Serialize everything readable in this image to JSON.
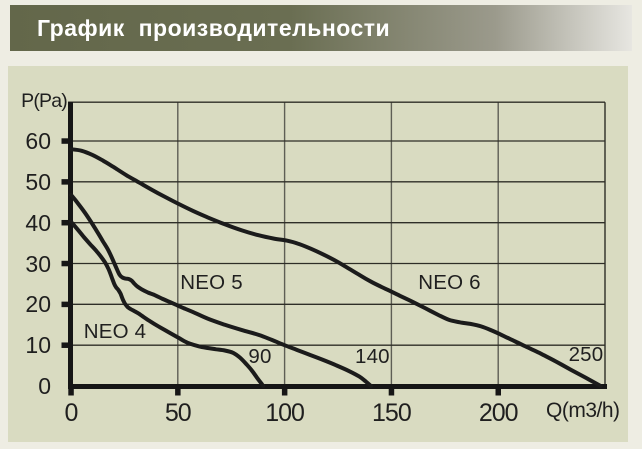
{
  "header": {
    "title": "График производительности"
  },
  "colors": {
    "page_bg": "#eeede3",
    "panel_bg": "#d9dbc1",
    "header_gradient_start": "#63674a",
    "header_gradient_end": "#e7e6e1",
    "title_text": "#ffffff",
    "curve": "#1b1b1b",
    "axis": "#161616",
    "grid_horizontal": "#2e2e27",
    "grid_vertical": "#5e5e55",
    "label_text": "#1f1f1f"
  },
  "chart_data": {
    "type": "line",
    "title": "График производительности",
    "xlabel": "Q(m3/h)",
    "ylabel": "P(Pa)",
    "xlim": [
      0,
      250
    ],
    "ylim": [
      0,
      69.5
    ],
    "xticks": [
      0,
      50,
      100,
      150,
      200
    ],
    "yticks": [
      0,
      10,
      20,
      30,
      40,
      50,
      60
    ],
    "grid": true,
    "series": [
      {
        "name": "NEO 4",
        "name_pos": {
          "q": 20.6,
          "p": 13.3
        },
        "flow_label": "90",
        "flow_label_pos": {
          "q": 88.5,
          "p": 7.2
        },
        "points": [
          [
            0,
            40.2
          ],
          [
            3,
            38.4
          ],
          [
            6,
            36.5
          ],
          [
            9,
            34.7
          ],
          [
            12,
            33
          ],
          [
            14,
            31.7
          ],
          [
            16,
            30.2
          ],
          [
            17.6,
            28.6
          ],
          [
            19.3,
            26.3
          ],
          [
            20.3,
            24.9
          ],
          [
            21.2,
            24.1
          ],
          [
            22.2,
            23.5
          ],
          [
            23.2,
            22.6
          ],
          [
            24,
            21.5
          ],
          [
            24.8,
            20.6
          ],
          [
            25.6,
            19.9
          ],
          [
            26.6,
            19.3
          ],
          [
            28,
            18.8
          ],
          [
            29.5,
            18.4
          ],
          [
            31.5,
            17.8
          ],
          [
            34,
            16.9
          ],
          [
            36,
            16.2
          ],
          [
            40,
            14.9
          ],
          [
            44,
            13.7
          ],
          [
            50,
            11.9
          ],
          [
            53,
            11
          ],
          [
            56,
            10.3
          ],
          [
            60,
            9.7
          ],
          [
            64,
            9.3
          ],
          [
            68,
            9
          ],
          [
            72,
            8.7
          ],
          [
            76,
            8.1
          ],
          [
            79,
            7
          ],
          [
            82,
            5.4
          ],
          [
            84.5,
            3.9
          ],
          [
            87,
            2.1
          ],
          [
            89,
            0.7
          ],
          [
            90,
            0
          ]
        ]
      },
      {
        "name": "NEO 5",
        "name_pos": {
          "q": 65.8,
          "p": 25.3
        },
        "flow_label": "140",
        "flow_label_pos": {
          "q": 141.1,
          "p": 7.2
        },
        "points": [
          [
            0,
            46.8
          ],
          [
            3,
            44.9
          ],
          [
            6,
            42.8
          ],
          [
            9,
            40.5
          ],
          [
            12,
            38
          ],
          [
            15,
            35.4
          ],
          [
            17.5,
            33.2
          ],
          [
            20,
            30.4
          ],
          [
            21.5,
            28.6
          ],
          [
            22.8,
            27.2
          ],
          [
            24,
            26.6
          ],
          [
            25.5,
            26.3
          ],
          [
            27,
            26.2
          ],
          [
            28.4,
            25.8
          ],
          [
            29.6,
            25.1
          ],
          [
            31,
            24.4
          ],
          [
            33,
            23.7
          ],
          [
            36,
            22.9
          ],
          [
            39,
            22.3
          ],
          [
            43,
            21.3
          ],
          [
            47,
            20.4
          ],
          [
            50,
            19.7
          ],
          [
            53,
            19
          ],
          [
            58,
            17.9
          ],
          [
            64,
            16.5
          ],
          [
            72,
            15
          ],
          [
            80,
            13.7
          ],
          [
            88,
            12.5
          ],
          [
            94,
            11.3
          ],
          [
            100,
            10
          ],
          [
            106,
            8.8
          ],
          [
            112,
            7.6
          ],
          [
            118,
            6.4
          ],
          [
            124,
            5.1
          ],
          [
            130,
            3.7
          ],
          [
            135,
            2.3
          ],
          [
            138,
            1.1
          ],
          [
            140.5,
            0
          ]
        ]
      },
      {
        "name": "NEO 6",
        "name_pos": {
          "q": 177.2,
          "p": 25.3
        },
        "flow_label": "250",
        "flow_label_pos": {
          "q": 241.1,
          "p": 7.6
        },
        "points": [
          [
            0,
            58
          ],
          [
            5,
            57.6
          ],
          [
            10,
            56.6
          ],
          [
            15,
            55.2
          ],
          [
            20,
            53.6
          ],
          [
            26,
            51.6
          ],
          [
            32,
            49.8
          ],
          [
            38,
            48
          ],
          [
            44,
            46.3
          ],
          [
            50,
            44.7
          ],
          [
            57,
            42.9
          ],
          [
            64,
            41.3
          ],
          [
            72,
            39.6
          ],
          [
            80,
            38.1
          ],
          [
            88,
            36.9
          ],
          [
            95,
            36.1
          ],
          [
            101,
            35.6
          ],
          [
            106,
            34.9
          ],
          [
            111,
            33.9
          ],
          [
            117,
            32.5
          ],
          [
            123,
            30.9
          ],
          [
            129,
            29.1
          ],
          [
            135,
            27.2
          ],
          [
            141,
            25.4
          ],
          [
            148,
            23.6
          ],
          [
            154,
            22.1
          ],
          [
            160,
            20.6
          ],
          [
            166,
            19
          ],
          [
            172,
            17.4
          ],
          [
            177,
            16.2
          ],
          [
            182,
            15.6
          ],
          [
            187,
            15.2
          ],
          [
            192,
            14.6
          ],
          [
            197,
            13.6
          ],
          [
            202,
            12.4
          ],
          [
            208,
            10.9
          ],
          [
            214,
            9.4
          ],
          [
            220,
            7.9
          ],
          [
            227,
            6
          ],
          [
            234,
            4
          ],
          [
            241,
            2
          ],
          [
            248,
            0
          ]
        ]
      }
    ]
  }
}
